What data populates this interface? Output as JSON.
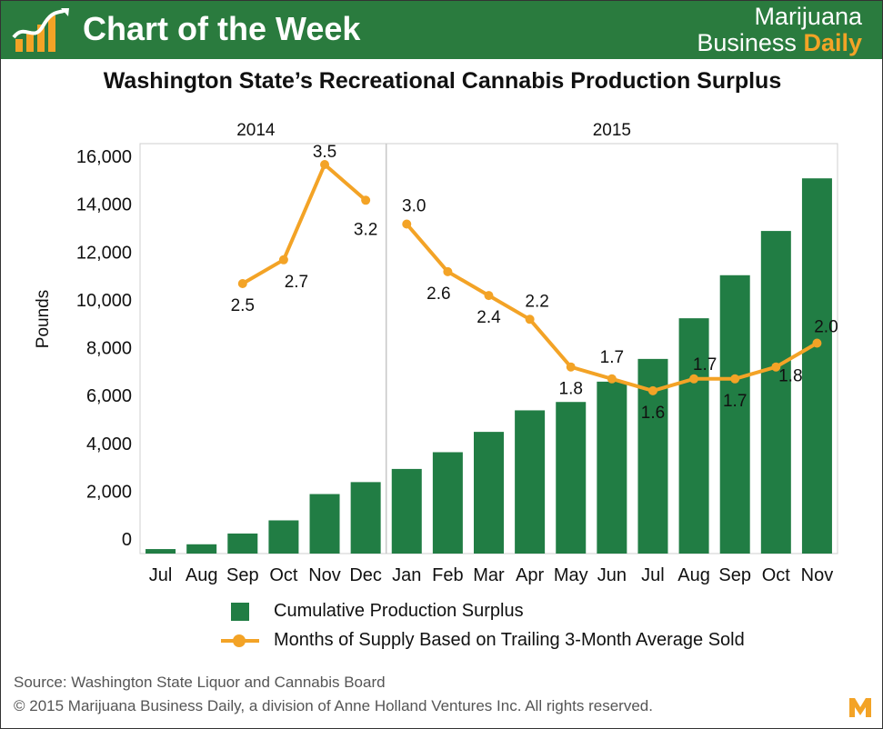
{
  "banner": {
    "title": "Chart of the Week",
    "brand_line1": "Marijuana",
    "brand_line2": "Business",
    "brand_line2_accent": "Daily"
  },
  "colors": {
    "banner_green": "#2a7b3e",
    "bar_green": "#217d44",
    "line_orange": "#f3a326"
  },
  "chart_data": {
    "type": "bar+line",
    "title": "Washington State’s Recreational Cannabis Production Surplus",
    "ylabel": "Pounds",
    "ylim": [
      0,
      16000
    ],
    "yticks": [
      0,
      2000,
      4000,
      6000,
      8000,
      10000,
      12000,
      14000,
      16000
    ],
    "ytick_labels": [
      "0",
      "2,000",
      "4,000",
      "6,000",
      "8,000",
      "10,000",
      "12,000",
      "14,000",
      "16,000"
    ],
    "year_groups": [
      {
        "label": "2014",
        "months": 6
      },
      {
        "label": "2015",
        "months": 11
      }
    ],
    "categories": [
      "Jul",
      "Aug",
      "Sep",
      "Oct",
      "Nov",
      "Dec",
      "Jan",
      "Feb",
      "Mar",
      "Apr",
      "May",
      "Jun",
      "Jul",
      "Aug",
      "Sep",
      "Oct",
      "Nov"
    ],
    "series": [
      {
        "name": "Cumulative Production Surplus",
        "type": "bar",
        "values": [
          150,
          350,
          800,
          1350,
          2450,
          2950,
          3500,
          4200,
          5050,
          5950,
          6300,
          7150,
          8100,
          9800,
          11600,
          13450,
          15650
        ]
      },
      {
        "name": "Months of Supply Based on Trailing 3-Month Average Sold",
        "type": "line",
        "values": [
          null,
          null,
          2.5,
          2.7,
          3.5,
          3.2,
          3.0,
          2.6,
          2.4,
          2.2,
          1.8,
          1.7,
          1.6,
          1.7,
          1.7,
          1.8,
          2.0
        ],
        "labels": [
          null,
          null,
          "2.5",
          "2.7",
          "3.5",
          "3.2",
          "3.0",
          "2.6",
          "2.4",
          "2.2",
          "1.8",
          "1.7",
          "1.6",
          "1.7",
          "1.7",
          "1.8",
          "2.0"
        ]
      }
    ]
  },
  "footer": {
    "source": "Source: Washington State Liquor and Cannabis Board",
    "copyright": "© 2015 Marijuana Business Daily, a division of Anne Holland Ventures Inc. All rights reserved."
  }
}
